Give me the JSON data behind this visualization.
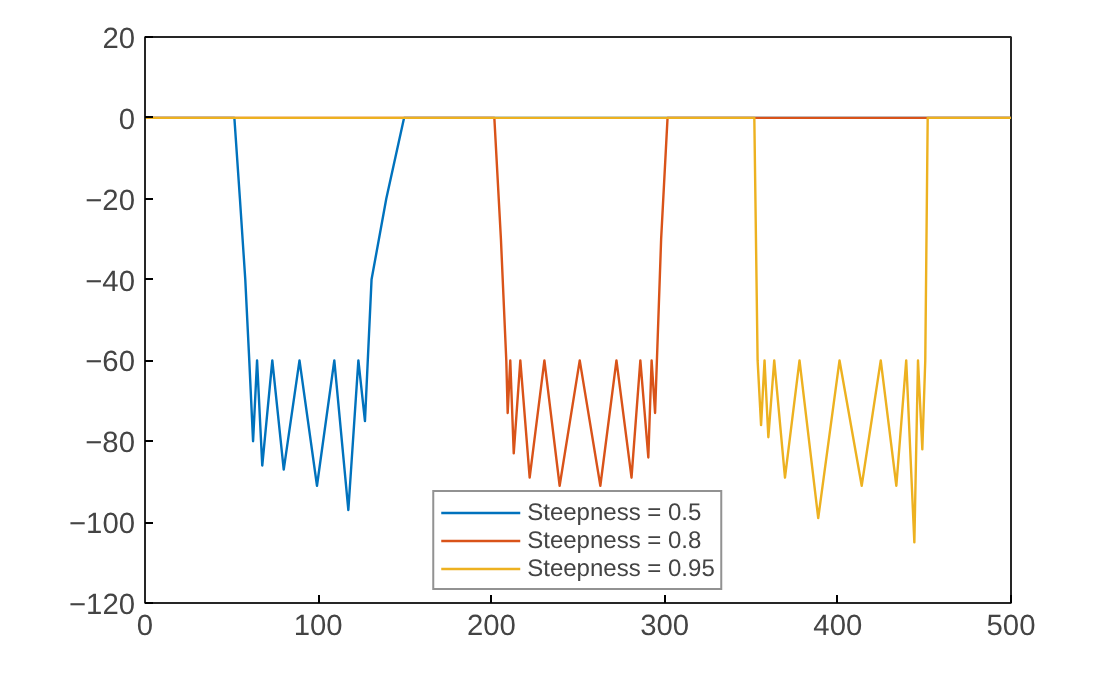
{
  "chart_data": {
    "type": "line",
    "xlim": [
      0,
      500
    ],
    "ylim": [
      -120,
      20
    ],
    "xticks": [
      0,
      100,
      200,
      300,
      400,
      500
    ],
    "yticks": [
      -120,
      -100,
      -80,
      -60,
      -40,
      -20,
      0,
      20
    ],
    "grid": false,
    "legend": "bottom",
    "marker": "none",
    "line_style": "solid",
    "series": [
      {
        "name": "Steepness = 0.5",
        "color": "#0072bd",
        "x": [
          0,
          51.6,
          54.8,
          57.9,
          60.2,
          62.4,
          64.7,
          67.7,
          73.5,
          80.1,
          89.2,
          99.3,
          109.3,
          117.4,
          123.2,
          127.0,
          130.8,
          139.3,
          149.6,
          500
        ],
        "values": [
          0,
          0,
          -20,
          -40,
          -60,
          -80,
          -60,
          -86,
          -60,
          -87,
          -60,
          -91,
          -60,
          -97,
          -60,
          -75,
          -40,
          -20,
          0,
          0
        ]
      },
      {
        "name": "Steepness = 0.8",
        "color": "#d95319",
        "x": [
          0,
          201.7,
          205.5,
          208.6,
          209.4,
          210.9,
          212.9,
          216.7,
          222.1,
          230.6,
          239.4,
          251,
          262.9,
          272.2,
          280.9,
          286,
          290.6,
          292.5,
          294.5,
          298,
          301.7,
          500
        ],
        "values": [
          0,
          0,
          -30,
          -60,
          -73,
          -60,
          -83,
          -60,
          -89,
          -60,
          -91,
          -60,
          -91,
          -60,
          -89,
          -60,
          -84,
          -60,
          -73,
          -30,
          0,
          0
        ]
      },
      {
        "name": "Steepness = 0.95",
        "color": "#edb120",
        "x": [
          0,
          351.8,
          353.7,
          355.7,
          357.7,
          359.9,
          363.3,
          369.5,
          377.9,
          388.7,
          401,
          413.8,
          424.8,
          433.8,
          439.5,
          444.2,
          446.3,
          448.8,
          450.5,
          451.9,
          500
        ],
        "values": [
          0,
          0,
          -60,
          -76,
          -60,
          -79,
          -60,
          -89,
          -60,
          -99,
          -60,
          -91,
          -60,
          -91,
          -60,
          -105,
          -60,
          -82,
          -60,
          0,
          0
        ]
      }
    ]
  }
}
